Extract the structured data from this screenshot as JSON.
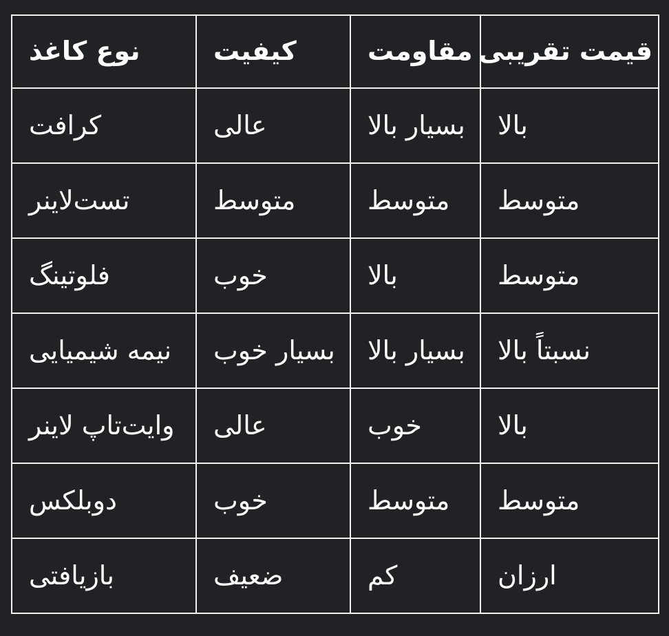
{
  "colors": {
    "background": "#212225",
    "grid_border": "#f0f0f0",
    "text": "#ffffff"
  },
  "chart_data": {
    "type": "table",
    "direction": "rtl",
    "columns": [
      "نوع کاغذ",
      "کیفیت",
      "مقاومت",
      "قیمت تقریبی"
    ],
    "rows": [
      [
        "کرافت",
        "عالی",
        "بسیار بالا",
        "بالا"
      ],
      [
        "تست‌لاینر",
        "متوسط",
        "متوسط",
        "متوسط"
      ],
      [
        "فلوتینگ",
        "خوب",
        "بالا",
        "متوسط"
      ],
      [
        "نیمه شیمیایی",
        "بسیار خوب",
        "بسیار بالا",
        "نسبتاً بالا"
      ],
      [
        "وایت‌تاپ لاینر",
        "عالی",
        "خوب",
        "بالا"
      ],
      [
        "دوبلکس",
        "خوب",
        "متوسط",
        "متوسط"
      ],
      [
        "بازیافتی",
        "ضعیف",
        "کم",
        "ارزان"
      ]
    ]
  }
}
